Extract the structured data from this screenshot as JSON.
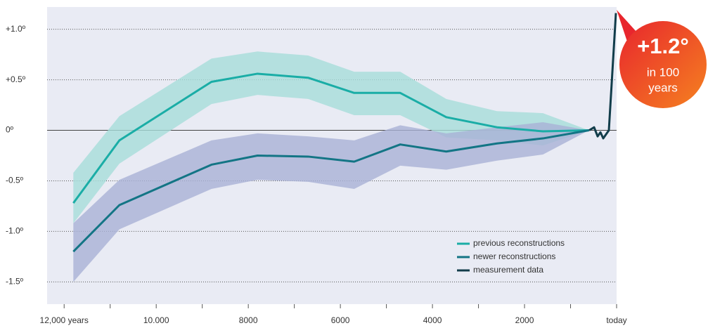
{
  "chart_data": {
    "type": "line",
    "x": [
      11800,
      10800,
      8800,
      7800,
      6700,
      5700,
      4700,
      3700,
      2600,
      1600,
      600
    ],
    "series": [
      {
        "name": "previous reconstructions",
        "color": "#1aada6",
        "band_color": "#a6ddd9",
        "values": [
          -0.72,
          -0.1,
          0.48,
          0.56,
          0.52,
          0.37,
          0.37,
          0.13,
          0.03,
          -0.01,
          0
        ],
        "upper": [
          -0.42,
          0.14,
          0.71,
          0.78,
          0.74,
          0.58,
          0.58,
          0.31,
          0.19,
          0.17,
          0
        ],
        "lower": [
          -0.92,
          -0.33,
          0.26,
          0.35,
          0.31,
          0.15,
          0.15,
          -0.07,
          -0.1,
          -0.15,
          0
        ]
      },
      {
        "name": "newer reconstructions",
        "color": "#137585",
        "band_color": "#a9b2d6",
        "values": [
          -1.2,
          -0.74,
          -0.34,
          -0.25,
          -0.26,
          -0.31,
          -0.14,
          -0.21,
          -0.13,
          -0.08,
          0
        ],
        "upper": [
          -0.92,
          -0.49,
          -0.1,
          -0.03,
          -0.06,
          -0.1,
          0.05,
          -0.03,
          0.03,
          0.08,
          0
        ],
        "lower": [
          -1.5,
          -0.98,
          -0.58,
          -0.49,
          -0.51,
          -0.58,
          -0.35,
          -0.39,
          -0.3,
          -0.24,
          0
        ]
      },
      {
        "name": "measurement data",
        "color": "#123d4a",
        "x": [
          595,
          489,
          412,
          351,
          290,
          168,
          15
        ],
        "values": [
          0,
          0.03,
          -0.06,
          -0.02,
          -0.08,
          0,
          1.16
        ]
      }
    ],
    "xlim": [
      12370,
      0
    ],
    "ylim": [
      -1.72,
      1.22
    ],
    "xticks": [
      {
        "value": 12000,
        "label": "12,000 years"
      },
      {
        "value": 10000,
        "label": "10.000"
      },
      8000,
      6000,
      4000,
      2000,
      {
        "value": 0,
        "label": "today"
      }
    ],
    "x_minor_ticks": [
      11000,
      9000,
      7000,
      5000,
      3000,
      1000
    ],
    "yticks": [
      {
        "value": 1.0,
        "label": "+1.0º"
      },
      {
        "value": 0.5,
        "label": "+0.5º"
      },
      {
        "value": 0,
        "label": "0º"
      },
      {
        "value": -0.5,
        "label": "-0.5º"
      },
      {
        "value": -1.0,
        "label": "-1.0º"
      },
      {
        "value": -1.5,
        "label": "-1.5º"
      }
    ],
    "grid": true,
    "legend": "lower right",
    "callout": {
      "value": "+1.2°",
      "line1": "in 100",
      "line2": "years"
    }
  }
}
